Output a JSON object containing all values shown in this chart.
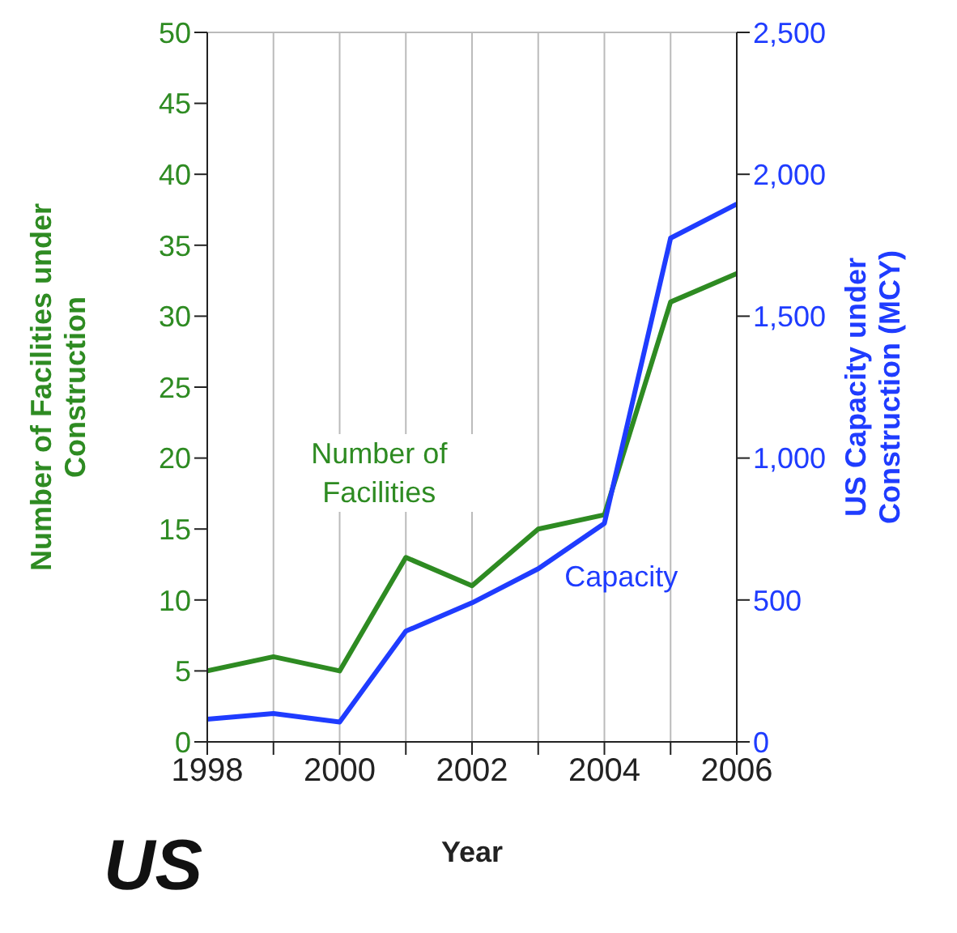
{
  "chart_data": {
    "type": "line",
    "xlabel": "Year",
    "ylabel": "Number of Facilities under Construction",
    "y2label": "US Capacity under Construction (MCY)",
    "annotations": [
      "US"
    ],
    "x": [
      1998,
      1999,
      2000,
      2001,
      2002,
      2003,
      2004,
      2005,
      2006
    ],
    "series": [
      {
        "name": "Number of Facilities",
        "color": "#2e8b22",
        "values": [
          5,
          6,
          5,
          13,
          11,
          15,
          16,
          31,
          33
        ]
      },
      {
        "name": "Capacity",
        "color": "#1f3cff",
        "axis": "y2",
        "values": [
          80,
          100,
          70,
          390,
          490,
          610,
          770,
          1775,
          1895
        ]
      }
    ],
    "xlim": [
      1998,
      2006
    ],
    "xticks": [
      1998,
      {
        "value": 1999,
        "label": null
      },
      2000,
      {
        "value": 2001,
        "label": null
      },
      2002,
      {
        "value": 2003,
        "label": null
      },
      2004,
      {
        "value": 2005,
        "label": null
      },
      2006
    ],
    "ylim": [
      0,
      50
    ],
    "yticks": [
      0,
      5,
      10,
      15,
      20,
      25,
      30,
      35,
      40,
      45,
      50
    ],
    "y2lim": [
      0,
      2500
    ],
    "y2ticks": [
      0,
      {
        "value": 500,
        "label": "500"
      },
      {
        "value": 1000,
        "label": "1,000"
      },
      {
        "value": 1500,
        "label": "1,500"
      },
      {
        "value": 2000,
        "label": "2,000"
      },
      {
        "value": 2500,
        "label": "2,500"
      }
    ],
    "grid": true,
    "marker": "none",
    "line_style": "solid"
  }
}
